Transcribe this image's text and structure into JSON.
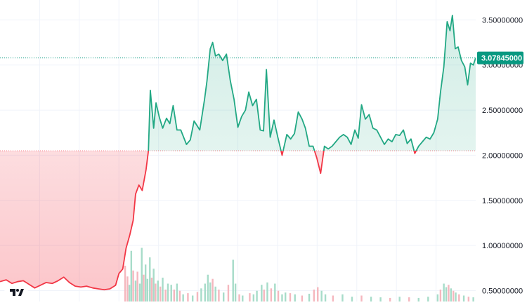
{
  "chart_data": {
    "type": "area",
    "title": "",
    "xlabel": "",
    "ylabel": "",
    "baseline": 2.05,
    "ylim": [
      0.38,
      3.72
    ],
    "x_range": [
      0,
      100
    ],
    "yticks": [
      {
        "value": 3.5,
        "label": "3.50000000"
      },
      {
        "value": 3.0,
        "label": "3.00000000"
      },
      {
        "value": 2.5,
        "label": "2.50000000"
      },
      {
        "value": 2.0,
        "label": "2.00000000"
      },
      {
        "value": 1.5,
        "label": "1.50000000"
      },
      {
        "value": 1.0,
        "label": "1.00000000"
      },
      {
        "value": 0.5,
        "label": "0.50000000"
      }
    ],
    "last_price": {
      "value": 3.07845,
      "label": "3.07845000"
    },
    "grid": true,
    "colors": {
      "above_line": "#22a884",
      "above_fill": "#d6f0e7",
      "below_line": "#f23645",
      "below_fill": "#fbd0d4",
      "volume_up": "#a7dcc9",
      "volume_down": "#f5b7be",
      "label_bg": "#089981"
    },
    "price_series": [
      [
        0.0,
        0.6
      ],
      [
        1.3,
        0.62
      ],
      [
        2.5,
        0.58
      ],
      [
        3.7,
        0.6
      ],
      [
        4.9,
        0.61
      ],
      [
        6.1,
        0.57
      ],
      [
        7.3,
        0.53
      ],
      [
        8.5,
        0.56
      ],
      [
        9.7,
        0.59
      ],
      [
        11.0,
        0.58
      ],
      [
        12.2,
        0.61
      ],
      [
        13.4,
        0.65
      ],
      [
        14.6,
        0.59
      ],
      [
        15.8,
        0.55
      ],
      [
        17.0,
        0.54
      ],
      [
        18.2,
        0.55
      ],
      [
        19.5,
        0.53
      ],
      [
        20.7,
        0.52
      ],
      [
        21.9,
        0.51
      ],
      [
        23.1,
        0.52
      ],
      [
        24.3,
        0.56
      ],
      [
        25.0,
        0.69
      ],
      [
        25.8,
        0.74
      ],
      [
        26.5,
        0.97
      ],
      [
        27.3,
        1.12
      ],
      [
        28.0,
        1.28
      ],
      [
        28.5,
        1.57
      ],
      [
        29.2,
        1.67
      ],
      [
        29.9,
        1.61
      ],
      [
        30.7,
        1.84
      ],
      [
        31.2,
        2.05
      ],
      [
        31.6,
        2.72
      ],
      [
        32.3,
        2.3
      ],
      [
        32.8,
        2.58
      ],
      [
        33.5,
        2.42
      ],
      [
        34.2,
        2.3
      ],
      [
        35.0,
        2.41
      ],
      [
        35.7,
        2.35
      ],
      [
        36.4,
        2.55
      ],
      [
        37.2,
        2.28
      ],
      [
        38.0,
        2.28
      ],
      [
        39.2,
        2.12
      ],
      [
        40.0,
        2.17
      ],
      [
        40.8,
        2.38
      ],
      [
        42.0,
        2.28
      ],
      [
        43.0,
        2.62
      ],
      [
        43.5,
        2.82
      ],
      [
        44.2,
        3.18
      ],
      [
        44.7,
        3.25
      ],
      [
        45.3,
        3.1
      ],
      [
        46.0,
        3.12
      ],
      [
        46.8,
        3.05
      ],
      [
        47.6,
        3.12
      ],
      [
        48.4,
        2.83
      ],
      [
        49.2,
        2.62
      ],
      [
        50.0,
        2.31
      ],
      [
        50.8,
        2.43
      ],
      [
        51.6,
        2.5
      ],
      [
        52.3,
        2.7
      ],
      [
        53.1,
        2.55
      ],
      [
        53.9,
        2.62
      ],
      [
        54.7,
        2.28
      ],
      [
        55.4,
        2.27
      ],
      [
        56.0,
        2.95
      ],
      [
        56.8,
        2.2
      ],
      [
        57.6,
        2.39
      ],
      [
        58.4,
        2.2
      ],
      [
        59.3,
        2.0
      ],
      [
        60.3,
        2.23
      ],
      [
        61.1,
        2.18
      ],
      [
        61.9,
        2.24
      ],
      [
        62.7,
        2.48
      ],
      [
        63.5,
        2.4
      ],
      [
        64.2,
        2.3
      ],
      [
        65.0,
        2.1
      ],
      [
        65.8,
        2.1
      ],
      [
        66.6,
        1.97
      ],
      [
        67.4,
        1.8
      ],
      [
        68.2,
        2.1
      ],
      [
        69.0,
        2.07
      ],
      [
        69.8,
        2.1
      ],
      [
        70.6,
        2.15
      ],
      [
        71.4,
        2.2
      ],
      [
        72.2,
        2.23
      ],
      [
        73.0,
        2.2
      ],
      [
        73.8,
        2.12
      ],
      [
        74.6,
        2.28
      ],
      [
        75.3,
        2.19
      ],
      [
        76.0,
        2.56
      ],
      [
        76.8,
        2.4
      ],
      [
        77.6,
        2.45
      ],
      [
        78.4,
        2.3
      ],
      [
        79.2,
        2.28
      ],
      [
        80.0,
        2.2
      ],
      [
        80.8,
        2.12
      ],
      [
        81.6,
        2.18
      ],
      [
        82.4,
        2.15
      ],
      [
        83.2,
        2.23
      ],
      [
        84.0,
        2.22
      ],
      [
        84.8,
        2.28
      ],
      [
        85.6,
        2.13
      ],
      [
        86.4,
        2.18
      ],
      [
        87.2,
        2.02
      ],
      [
        88.0,
        2.1
      ],
      [
        88.8,
        2.15
      ],
      [
        89.6,
        2.2
      ],
      [
        90.4,
        2.18
      ],
      [
        91.2,
        2.25
      ],
      [
        92.0,
        2.4
      ],
      [
        92.6,
        2.7
      ],
      [
        93.3,
        2.98
      ],
      [
        94.0,
        3.48
      ],
      [
        94.6,
        3.38
      ],
      [
        95.1,
        3.55
      ],
      [
        95.7,
        3.18
      ],
      [
        96.3,
        3.2
      ],
      [
        97.0,
        3.05
      ],
      [
        97.7,
        2.98
      ],
      [
        98.3,
        2.78
      ],
      [
        98.9,
        3.02
      ],
      [
        99.5,
        3.0
      ],
      [
        100.0,
        3.08
      ]
    ],
    "volume_series": [
      [
        26.3,
        0.6,
        "down"
      ],
      [
        26.8,
        0.42,
        "down"
      ],
      [
        27.2,
        0.28,
        "up"
      ],
      [
        27.6,
        0.85,
        "up"
      ],
      [
        28.0,
        0.52,
        "down"
      ],
      [
        28.5,
        0.35,
        "up"
      ],
      [
        28.9,
        0.5,
        "down"
      ],
      [
        29.4,
        0.3,
        "up"
      ],
      [
        29.8,
        0.9,
        "up"
      ],
      [
        30.2,
        0.45,
        "down"
      ],
      [
        30.6,
        0.62,
        "up"
      ],
      [
        31.0,
        0.38,
        "up"
      ],
      [
        31.5,
        0.74,
        "up"
      ],
      [
        31.9,
        0.4,
        "down"
      ],
      [
        32.3,
        0.55,
        "up"
      ],
      [
        32.7,
        0.3,
        "down"
      ],
      [
        33.2,
        0.35,
        "up"
      ],
      [
        33.7,
        0.25,
        "down"
      ],
      [
        34.2,
        0.4,
        "up"
      ],
      [
        34.8,
        0.2,
        "down"
      ],
      [
        35.3,
        0.3,
        "up"
      ],
      [
        36.0,
        0.28,
        "up"
      ],
      [
        36.6,
        0.2,
        "down"
      ],
      [
        37.2,
        0.3,
        "up"
      ],
      [
        37.8,
        0.18,
        "down"
      ],
      [
        38.5,
        0.12,
        "up"
      ],
      [
        39.5,
        0.14,
        "down"
      ],
      [
        40.5,
        0.1,
        "up"
      ],
      [
        41.5,
        0.16,
        "down"
      ],
      [
        42.3,
        0.22,
        "up"
      ],
      [
        43.1,
        0.3,
        "up"
      ],
      [
        43.7,
        0.45,
        "up"
      ],
      [
        44.2,
        0.32,
        "up"
      ],
      [
        44.7,
        0.38,
        "down"
      ],
      [
        45.3,
        0.25,
        "up"
      ],
      [
        46.0,
        0.2,
        "down"
      ],
      [
        47.0,
        0.15,
        "up"
      ],
      [
        48.0,
        0.28,
        "down"
      ],
      [
        49.0,
        0.7,
        "up"
      ],
      [
        49.5,
        0.3,
        "up"
      ],
      [
        50.3,
        0.12,
        "down"
      ],
      [
        51.0,
        0.1,
        "up"
      ],
      [
        52.5,
        0.14,
        "down"
      ],
      [
        53.3,
        0.12,
        "up"
      ],
      [
        54.0,
        0.18,
        "up"
      ],
      [
        55.0,
        0.28,
        "up"
      ],
      [
        55.5,
        0.2,
        "down"
      ],
      [
        56.2,
        0.32,
        "up"
      ],
      [
        57.0,
        0.22,
        "down"
      ],
      [
        57.8,
        0.3,
        "up"
      ],
      [
        58.5,
        0.18,
        "down"
      ],
      [
        59.3,
        0.12,
        "up"
      ],
      [
        60.0,
        0.15,
        "up"
      ],
      [
        61.0,
        0.14,
        "down"
      ],
      [
        62.0,
        0.12,
        "up"
      ],
      [
        63.5,
        0.1,
        "down"
      ],
      [
        65.0,
        0.13,
        "up"
      ],
      [
        66.0,
        0.2,
        "down"
      ],
      [
        66.8,
        0.24,
        "down"
      ],
      [
        67.6,
        0.18,
        "up"
      ],
      [
        68.4,
        0.12,
        "up"
      ],
      [
        70.0,
        0.1,
        "down"
      ],
      [
        72.0,
        0.12,
        "up"
      ],
      [
        74.0,
        0.08,
        "up"
      ],
      [
        76.0,
        0.1,
        "down"
      ],
      [
        78.0,
        0.08,
        "up"
      ],
      [
        80.0,
        0.07,
        "up"
      ],
      [
        82.0,
        0.06,
        "down"
      ],
      [
        84.0,
        0.08,
        "up"
      ],
      [
        86.0,
        0.07,
        "down"
      ],
      [
        88.0,
        0.06,
        "up"
      ],
      [
        90.0,
        0.08,
        "up"
      ],
      [
        92.0,
        0.12,
        "up"
      ],
      [
        92.6,
        0.2,
        "down"
      ],
      [
        93.3,
        0.3,
        "up"
      ],
      [
        93.8,
        0.24,
        "up"
      ],
      [
        94.3,
        0.28,
        "down"
      ],
      [
        94.8,
        0.22,
        "up"
      ],
      [
        95.3,
        0.18,
        "down"
      ],
      [
        95.8,
        0.15,
        "up"
      ],
      [
        96.5,
        0.12,
        "down"
      ],
      [
        97.5,
        0.1,
        "up"
      ],
      [
        98.5,
        0.08,
        "down"
      ],
      [
        99.5,
        0.07,
        "up"
      ]
    ]
  }
}
